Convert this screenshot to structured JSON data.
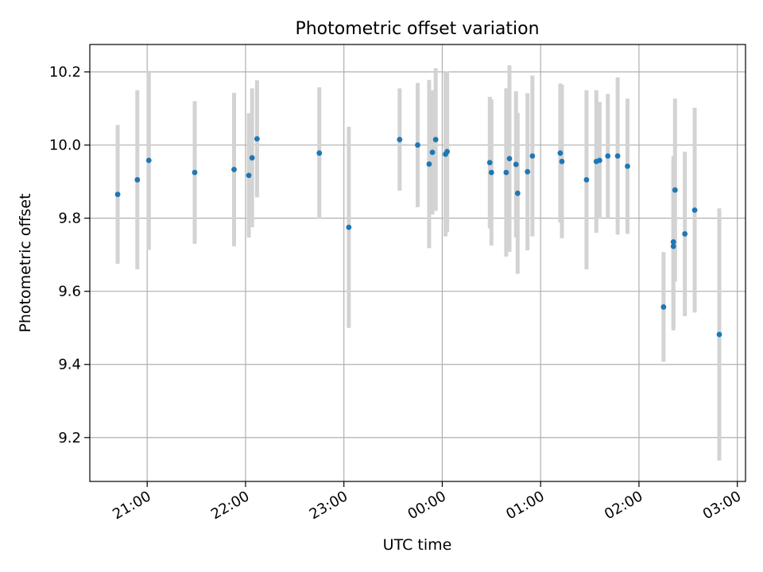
{
  "chart_data": {
    "type": "scatter",
    "title": "Photometric offset variation",
    "xlabel": "UTC time",
    "ylabel": "Photometric offset",
    "grid": true,
    "x_unit": "UTC time (hours, times after midnight written as 24+h)",
    "xlim": [
      "20:25",
      "03:05"
    ],
    "ylim": [
      9.08,
      10.275
    ],
    "x_ticks": [
      "21:00",
      "22:00",
      "23:00",
      "00:00",
      "01:00",
      "02:00",
      "03:00"
    ],
    "y_ticks": [
      "9.2",
      "9.4",
      "9.6",
      "9.8",
      "10.0",
      "10.2"
    ],
    "colors": {
      "marker": "#1f77b4",
      "errorbar": "#d3d3d3",
      "grid": "#b0b0b0"
    },
    "series": [
      {
        "points": [
          {
            "t": "20:42",
            "y": 9.865,
            "err": 0.19
          },
          {
            "t": "20:54",
            "y": 9.905,
            "err": 0.245
          },
          {
            "t": "21:01",
            "y": 9.958,
            "err": 0.245
          },
          {
            "t": "21:29",
            "y": 9.925,
            "err": 0.195
          },
          {
            "t": "21:53",
            "y": 9.933,
            "err": 0.21
          },
          {
            "t": "22:02",
            "y": 9.917,
            "err": 0.17
          },
          {
            "t": "22:04",
            "y": 9.965,
            "err": 0.19
          },
          {
            "t": "22:07",
            "y": 10.017,
            "err": 0.16
          },
          {
            "t": "22:45",
            "y": 9.978,
            "err": 0.18
          },
          {
            "t": "23:03",
            "y": 9.775,
            "err": 0.275
          },
          {
            "t": "23:34",
            "y": 10.015,
            "err": 0.14
          },
          {
            "t": "23:45",
            "y": 10.0,
            "err": 0.17
          },
          {
            "t": "23:52",
            "y": 9.948,
            "err": 0.23
          },
          {
            "t": "23:54",
            "y": 9.98,
            "err": 0.17
          },
          {
            "t": "23:56",
            "y": 10.015,
            "err": 0.195
          },
          {
            "t": "00:02",
            "y": 9.975,
            "err": 0.225
          },
          {
            "t": "00:03",
            "y": 9.982,
            "err": 0.22
          },
          {
            "t": "00:29",
            "y": 9.952,
            "err": 0.18
          },
          {
            "t": "00:30",
            "y": 9.925,
            "err": 0.2
          },
          {
            "t": "00:39",
            "y": 9.925,
            "err": 0.23
          },
          {
            "t": "00:41",
            "y": 9.963,
            "err": 0.255
          },
          {
            "t": "00:45",
            "y": 9.947,
            "err": 0.2
          },
          {
            "t": "00:46",
            "y": 9.868,
            "err": 0.22
          },
          {
            "t": "00:52",
            "y": 9.927,
            "err": 0.215
          },
          {
            "t": "00:55",
            "y": 9.97,
            "err": 0.22
          },
          {
            "t": "01:12",
            "y": 9.978,
            "err": 0.19
          },
          {
            "t": "01:13",
            "y": 9.955,
            "err": 0.21
          },
          {
            "t": "01:28",
            "y": 9.905,
            "err": 0.245
          },
          {
            "t": "01:34",
            "y": 9.955,
            "err": 0.195
          },
          {
            "t": "01:36",
            "y": 9.958,
            "err": 0.16
          },
          {
            "t": "01:41",
            "y": 9.97,
            "err": 0.17
          },
          {
            "t": "01:47",
            "y": 9.97,
            "err": 0.215
          },
          {
            "t": "01:53",
            "y": 9.942,
            "err": 0.185
          },
          {
            "t": "02:15",
            "y": 9.557,
            "err": 0.15
          },
          {
            "t": "02:21",
            "y": 9.735,
            "err": 0.235
          },
          {
            "t": "02:21",
            "y": 9.723,
            "err": 0.23
          },
          {
            "t": "02:22",
            "y": 9.877,
            "err": 0.25
          },
          {
            "t": "02:28",
            "y": 9.757,
            "err": 0.225
          },
          {
            "t": "02:34",
            "y": 9.822,
            "err": 0.28
          },
          {
            "t": "02:49",
            "y": 9.482,
            "err": 0.345
          }
        ]
      }
    ]
  }
}
